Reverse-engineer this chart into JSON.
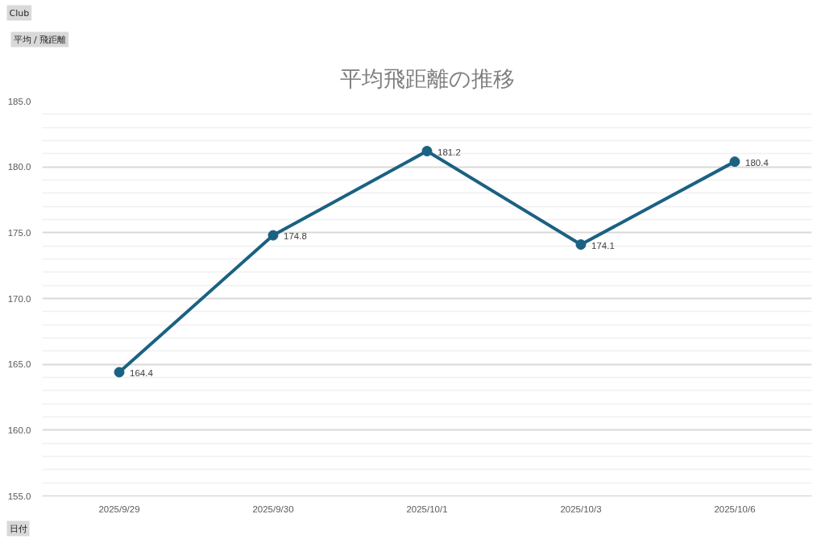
{
  "chart_data": {
    "type": "line",
    "title": "平均飛距離の推移",
    "categories": [
      "2025/9/29",
      "2025/9/30",
      "2025/10/1",
      "2025/10/3",
      "2025/10/6"
    ],
    "series": [
      {
        "color": "#1b6182",
        "values": [
          164.4,
          174.8,
          181.2,
          174.1,
          180.4
        ]
      }
    ],
    "ylim": [
      155,
      185
    ],
    "yticks": [
      {
        "value": 155,
        "label": "155.0"
      },
      {
        "value": 160,
        "label": "160.0"
      },
      {
        "value": 165,
        "label": "165.0"
      },
      {
        "value": 170,
        "label": "170.0"
      },
      {
        "value": 175,
        "label": "175.0"
      },
      {
        "value": 180,
        "label": "180.0"
      },
      {
        "value": 185,
        "label": "185.0"
      }
    ],
    "grid": "y",
    "marker": "circle",
    "data_labels": true,
    "annotations": [
      "Club",
      "平均 / 飛距離",
      "日付"
    ]
  }
}
